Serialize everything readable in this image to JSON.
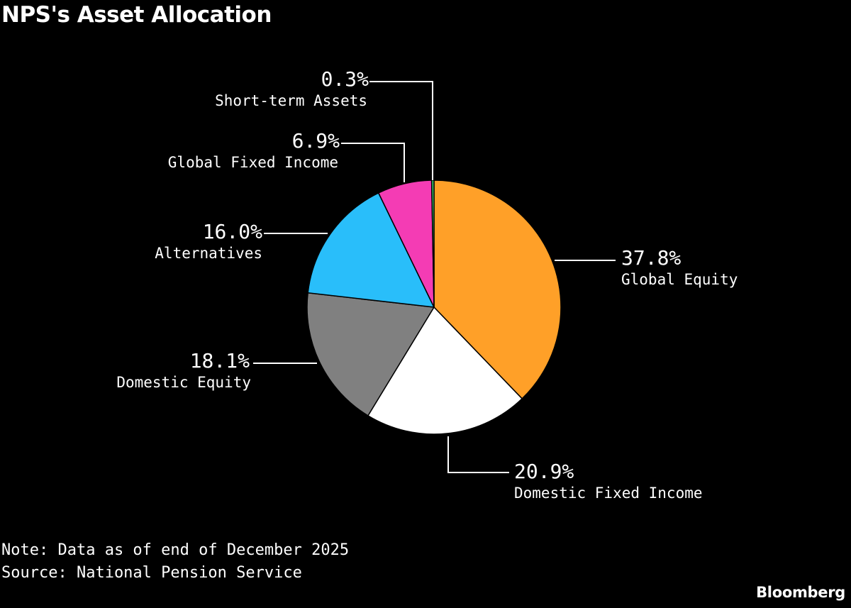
{
  "header": {
    "title": "NPS's Asset Allocation"
  },
  "footer": {
    "note": "Note: Data as of end of December 2025",
    "source": "Source: National Pension Service",
    "brand": "Bloomberg"
  },
  "chart_data": {
    "type": "pie",
    "title": "NPS's Asset Allocation",
    "unit": "%",
    "start_angle_deg": 0,
    "direction": "clockwise",
    "slices": [
      {
        "label": "Global Equity",
        "value": 37.8,
        "display": "37.8%",
        "color": "#FFA028"
      },
      {
        "label": "Domestic Fixed Income",
        "value": 20.9,
        "display": "20.9%",
        "color": "#FFFFFF"
      },
      {
        "label": "Domestic Equity",
        "value": 18.1,
        "display": "18.1%",
        "color": "#808080"
      },
      {
        "label": "Alternatives",
        "value": 16.0,
        "display": "16.0%",
        "color": "#29BEFA"
      },
      {
        "label": "Global Fixed Income",
        "value": 6.9,
        "display": "6.9%",
        "color": "#F43CB4"
      },
      {
        "label": "Short-term Assets",
        "value": 0.3,
        "display": "0.3%",
        "color": "#3DCF6E"
      }
    ]
  }
}
